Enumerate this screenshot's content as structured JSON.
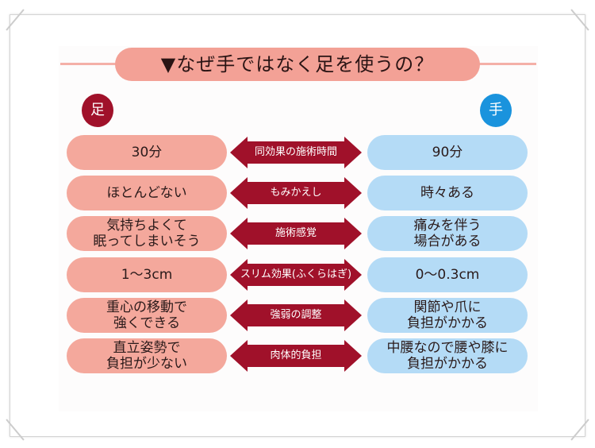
{
  "title": "▼なぜ手ではなく足を使うの？",
  "foot_label": "足",
  "hand_label": "手",
  "colors": {
    "foot": "#a0112a",
    "hand": "#1a93dd",
    "foot_pill": "#f4a89c",
    "hand_pill": "#b4dbf6",
    "arrow": "#a0112a"
  },
  "rows": [
    {
      "aspect": "同効果の施術時間",
      "foot": "30分",
      "hand": "90分"
    },
    {
      "aspect": "もみかえし",
      "foot": "ほとんどない",
      "hand": "時々ある"
    },
    {
      "aspect": "施術感覚",
      "foot": "気持ちよくて\n眠ってしまいそう",
      "hand": "痛みを伴う\n場合がある"
    },
    {
      "aspect": "スリム効果(ふくらはぎ)",
      "foot": "1～3cm",
      "hand": "0～0.3cm"
    },
    {
      "aspect": "強弱の調整",
      "foot": "重心の移動で\n強くできる",
      "hand": "関節や爪に\n負担がかかる"
    },
    {
      "aspect": "肉体的負担",
      "foot": "直立姿勢で\n負担が少ない",
      "hand": "中腰なので腰や膝に\n負担がかかる"
    }
  ]
}
